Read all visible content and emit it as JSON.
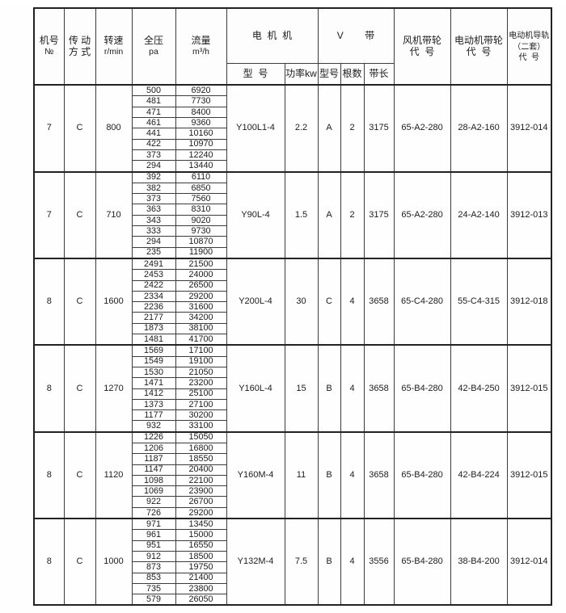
{
  "table": {
    "header": {
      "machine_no": [
        "机号",
        "№"
      ],
      "drive": [
        "传 动",
        "方 式"
      ],
      "speed": [
        "转速",
        "r/min"
      ],
      "pressure": [
        "全压",
        "pa"
      ],
      "flow": [
        "流量",
        "m³/h"
      ],
      "motor_group": "电  机  机",
      "motor_model": "型  号",
      "motor_power": "功率kw",
      "vbelt_group": [
        "V",
        "带"
      ],
      "vbelt_model": "型号",
      "vbelt_count": "根数",
      "vbelt_length": "带长",
      "fan_pulley": [
        "风机带轮",
        "代  号"
      ],
      "motor_pulley": [
        "电动机带轮",
        "代  号"
      ],
      "motor_rail": [
        "电动机导轨",
        "（二套）",
        "代  号"
      ]
    },
    "blocks": [
      {
        "machine_no": "7",
        "drive": "C",
        "speed": "800",
        "rows": [
          [
            "500",
            "6920"
          ],
          [
            "481",
            "7730"
          ],
          [
            "471",
            "8400"
          ],
          [
            "461",
            "9360"
          ],
          [
            "441",
            "10160"
          ],
          [
            "422",
            "10970"
          ],
          [
            "373",
            "12240"
          ],
          [
            "294",
            "13440"
          ]
        ],
        "motor_model": "Y100L1-4",
        "power": "2.2",
        "belt_type": "A",
        "belt_count": "2",
        "belt_length": "3175",
        "fan_pulley": "65-A2-280",
        "motor_pulley": "28-A2-160",
        "rail_code": "3912-014"
      },
      {
        "machine_no": "7",
        "drive": "C",
        "speed": "710",
        "rows": [
          [
            "392",
            "6110"
          ],
          [
            "382",
            "6850"
          ],
          [
            "373",
            "7560"
          ],
          [
            "363",
            "8310"
          ],
          [
            "343",
            "9020"
          ],
          [
            "333",
            "9730"
          ],
          [
            "294",
            "10870"
          ],
          [
            "235",
            "11900"
          ]
        ],
        "motor_model": "Y90L-4",
        "power": "1.5",
        "belt_type": "A",
        "belt_count": "2",
        "belt_length": "3175",
        "fan_pulley": "65-A2-280",
        "motor_pulley": "24-A2-140",
        "rail_code": "3912-013"
      },
      {
        "machine_no": "8",
        "drive": "C",
        "speed": "1600",
        "rows": [
          [
            "2491",
            "21500"
          ],
          [
            "2453",
            "24000"
          ],
          [
            "2422",
            "26500"
          ],
          [
            "2334",
            "29200"
          ],
          [
            "2236",
            "31600"
          ],
          [
            "2177",
            "34200"
          ],
          [
            "1873",
            "38100"
          ],
          [
            "1481",
            "41700"
          ]
        ],
        "motor_model": "Y200L-4",
        "power": "30",
        "belt_type": "C",
        "belt_count": "4",
        "belt_length": "3658",
        "fan_pulley": "65-C4-280",
        "motor_pulley": "55-C4-315",
        "rail_code": "3912-018"
      },
      {
        "machine_no": "8",
        "drive": "C",
        "speed": "1270",
        "rows": [
          [
            "1569",
            "17100"
          ],
          [
            "1549",
            "19100"
          ],
          [
            "1530",
            "21050"
          ],
          [
            "1471",
            "23200"
          ],
          [
            "1412",
            "25100"
          ],
          [
            "1373",
            "27100"
          ],
          [
            "1177",
            "30200"
          ],
          [
            "932",
            "33100"
          ]
        ],
        "motor_model": "Y160L-4",
        "power": "15",
        "belt_type": "B",
        "belt_count": "4",
        "belt_length": "3658",
        "fan_pulley": "65-B4-280",
        "motor_pulley": "42-B4-250",
        "rail_code": "3912-015"
      },
      {
        "machine_no": "8",
        "drive": "C",
        "speed": "1120",
        "rows": [
          [
            "1226",
            "15050"
          ],
          [
            "1206",
            "16800"
          ],
          [
            "1187",
            "18550"
          ],
          [
            "1147",
            "20400"
          ],
          [
            "1098",
            "22100"
          ],
          [
            "1069",
            "23900"
          ],
          [
            "922",
            "26700"
          ],
          [
            "726",
            "29200"
          ]
        ],
        "motor_model": "Y160M-4",
        "power": "11",
        "belt_type": "B",
        "belt_count": "4",
        "belt_length": "3658",
        "fan_pulley": "65-B4-280",
        "motor_pulley": "42-B4-224",
        "rail_code": "3912-015"
      },
      {
        "machine_no": "8",
        "drive": "C",
        "speed": "1000",
        "rows": [
          [
            "971",
            "13450"
          ],
          [
            "961",
            "15000"
          ],
          [
            "951",
            "16550"
          ],
          [
            "912",
            "18500"
          ],
          [
            "873",
            "19750"
          ],
          [
            "853",
            "21400"
          ],
          [
            "735",
            "23800"
          ],
          [
            "579",
            "26050"
          ]
        ],
        "motor_model": "Y132M-4",
        "power": "7.5",
        "belt_type": "B",
        "belt_count": "4",
        "belt_length": "3556",
        "fan_pulley": "65-B4-280",
        "motor_pulley": "38-B4-200",
        "rail_code": "3912-014"
      }
    ]
  }
}
